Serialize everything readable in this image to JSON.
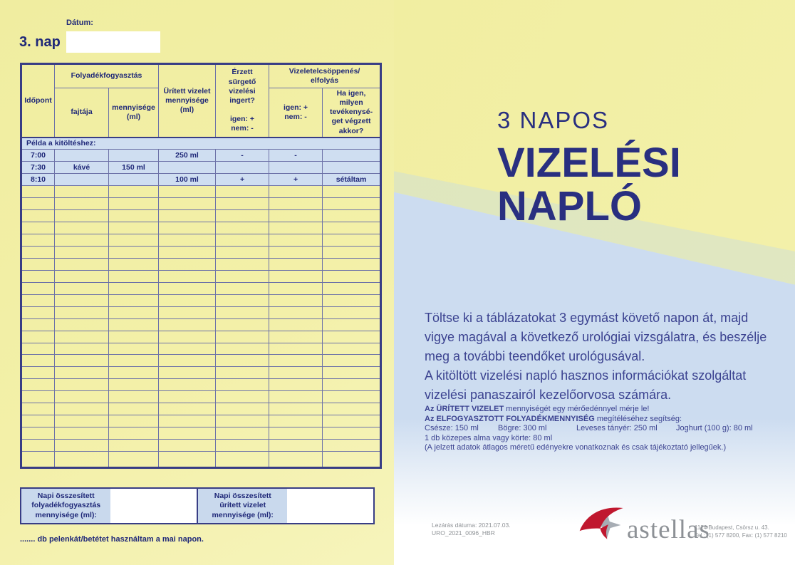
{
  "header": {
    "day": "3. nap",
    "date_label": "Dátum:",
    "date_value": ""
  },
  "table": {
    "col_idopont": "Időpont",
    "col_folyadek_group": "Folyadékfogyasztás",
    "col_fajtaja": "fajtája",
    "col_mennyisege": "mennyisége\n(ml)",
    "col_uritett": "Ürített vizelet\nmennyisége\n(ml)",
    "col_erzett": "Érzett sürgető\nvizelési ingert?\n\nigen: +\nnem: -",
    "col_csoppenes_group": "Vizeletelcsöppenés/\nelfolyás",
    "col_igen_nem": "igen: +\nnem: -",
    "col_ha_igen": "Ha igen,\nmilyen\ntevékenysé-\nget végzett\nakkor?",
    "example_label": "Példa a kitöltéshez:",
    "example_rows": [
      [
        "7:00",
        "",
        "",
        "250 ml",
        "-",
        "-",
        ""
      ],
      [
        "7:30",
        "kávé",
        "150 ml",
        "",
        "",
        "",
        ""
      ],
      [
        "8:10",
        "",
        "",
        "100 ml",
        "+",
        "+",
        "sétáltam"
      ]
    ],
    "empty_row_count": 23
  },
  "summary": {
    "fluid_total_label": "Napi összesített\nfolyadékfogyasztás\nmennyisége (ml):",
    "fluid_total_value": "",
    "urine_total_label": "Napi összesített\nürített vizelet\nmennyisége (ml):",
    "urine_total_value": ""
  },
  "diaper_note": "....... db pelenkát/betétet használtam a mai napon.",
  "panel": {
    "title_small": "3 NAPOS",
    "title_line1": "VIZELÉSI",
    "title_line2": "NAPLÓ",
    "intro": "Töltse ki a táblázatokat 3 egymást követő napon át, majd\nvigye magával a következő urológiai vizsgálatra, és beszélje\nmeg a további teendőket urológusával.\nA kitöltött vizelési napló hasznos információkat szolgáltat\nvizelési panaszairól kezelőorvosa számára.",
    "hint_bold1": "Az ÜRÍTETT VIZELET",
    "hint_rest1": " mennyiségét egy mérőedénnyel mérje le!",
    "hint_bold2": "Az ELFOGYASZTOTT FOLYADÉKMENNYISÉG",
    "hint_rest2": " megítéléséhez segítség:",
    "portions": [
      "Csésze: 150 ml",
      "Bögre: 300 ml",
      "Leveses tányér: 250 ml",
      "Joghurt (100 g): 80 ml"
    ],
    "portion_line2": "1 db közepes alma vagy körte: 80 ml",
    "disclaimer": "(A jelzett adatok átlagos méretű edényekre vonatkoznak és csak tájékoztató jellegűek.)"
  },
  "footer": {
    "closing_date": "Lezárás dátuma: 2021.07.03.",
    "doc_code": "URO_2021_0096_HBR",
    "brand": "astellas",
    "address": "1124 Budapest, Csörsz u. 43.",
    "phone": "Tel.: (1) 577 8200, Fax: (1) 577 8210"
  },
  "colors": {
    "navy": "#1f2878",
    "title_navy": "#292f80",
    "body_navy": "#3b4290",
    "light_blue": "#c9d9ed",
    "example_blue": "#cfdef1",
    "border_inner": "#6d72a8",
    "border_outer": "#383d85",
    "yellow": "#f2efa3",
    "blue_region": "#ccdcf0",
    "band_green": "#cfe0d6",
    "astellas_red": "#c0182f",
    "logo_gray": "#8d9196",
    "footer_gray": "#8e9296"
  }
}
